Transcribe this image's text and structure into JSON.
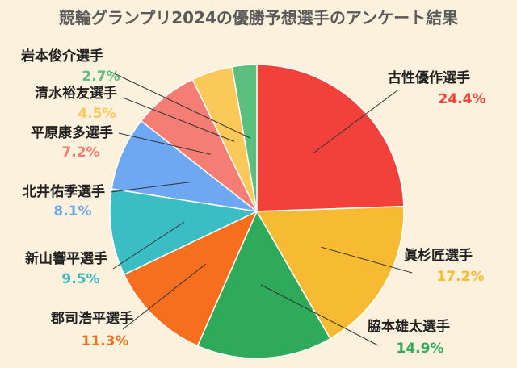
{
  "chart_data": {
    "type": "pie",
    "title": "競輪グランプリ2024の優勝予想選手のアンケート結果",
    "slices": [
      {
        "label": "古性優作選手",
        "value": 24.4,
        "display": "24.4%",
        "color": "#f2413a"
      },
      {
        "label": "眞杉匠選手",
        "value": 17.2,
        "display": "17.2%",
        "color": "#f7bb33"
      },
      {
        "label": "脇本雄太選手",
        "value": 14.9,
        "display": "14.9%",
        "color": "#2fa95a"
      },
      {
        "label": "郡司浩平選手",
        "value": 11.3,
        "display": "11.3%",
        "color": "#f56f1f"
      },
      {
        "label": "新山響平選手",
        "value": 9.5,
        "display": "9.5%",
        "color": "#3bbdc4"
      },
      {
        "label": "北井佑季選手",
        "value": 8.1,
        "display": "8.1%",
        "color": "#6fa8f2"
      },
      {
        "label": "平原康多選手",
        "value": 7.2,
        "display": "7.2%",
        "color": "#f47e73"
      },
      {
        "label": "清水裕友選手",
        "value": 4.5,
        "display": "4.5%",
        "color": "#fbc95a"
      },
      {
        "label": "岩本俊介選手",
        "value": 2.7,
        "display": "2.7%",
        "color": "#5cbf80"
      }
    ]
  }
}
